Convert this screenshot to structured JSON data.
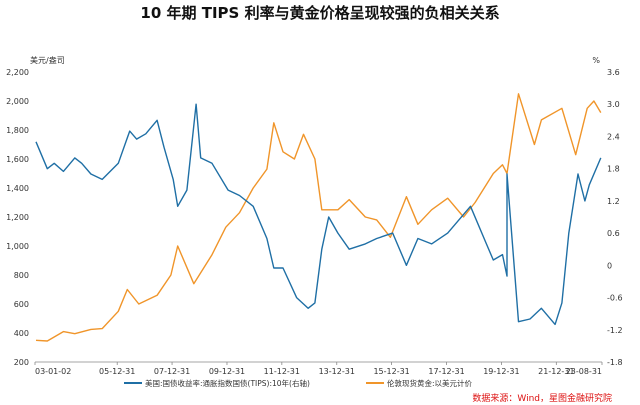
{
  "chart_data": {
    "type": "line",
    "title": "10 年期 TIPS 利率与黄金价格呈现较强的负相关关系",
    "left_unit": "美元/盎司",
    "right_unit": "%",
    "x_ticks": [
      "03-01-02",
      "05-12-31",
      "07-12-31",
      "09-12-31",
      "11-12-31",
      "13-12-31",
      "15-12-31",
      "17-12-31",
      "19-12-31",
      "21-12-31",
      "23-08-31"
    ],
    "x_range": [
      "2003-01-02",
      "2023-08-31"
    ],
    "y_left": {
      "range": [
        200,
        2200
      ],
      "ticks": [
        "200",
        "400",
        "600",
        "800",
        "1,000",
        "1,200",
        "1,400",
        "1,600",
        "1,800",
        "2,000",
        "2,200"
      ]
    },
    "y_right": {
      "range": [
        -1.8,
        3.6
      ],
      "ticks": [
        "-1.8",
        "-1.2",
        "-0.6",
        "0",
        "0.6",
        "1.2",
        "1.8",
        "2.4",
        "3.0",
        "3.6"
      ]
    },
    "grid": false,
    "legend_position": "bottom",
    "source": "数据来源：Wind，星图金融研究院",
    "series": [
      {
        "name": "美国:国债收益率:通胀指数国债(TIPS):10年(右轴)",
        "axis": "right",
        "color": "#1f6fa5",
        "x": [
          "2003-01",
          "2003-06",
          "2003-09",
          "2004-01",
          "2004-06",
          "2004-09",
          "2005-01",
          "2005-06",
          "2006-01",
          "2006-06",
          "2006-09",
          "2007-01",
          "2007-06",
          "2007-09",
          "2008-01",
          "2008-03",
          "2008-07",
          "2008-11",
          "2009-01",
          "2009-06",
          "2010-01",
          "2010-06",
          "2010-12",
          "2011-06",
          "2011-09",
          "2012-01",
          "2012-07",
          "2012-12",
          "2013-03",
          "2013-06",
          "2013-09",
          "2014-01",
          "2014-06",
          "2015-01",
          "2015-06",
          "2016-01",
          "2016-07",
          "2016-12",
          "2017-06",
          "2018-01",
          "2018-11",
          "2019-06",
          "2019-09",
          "2020-01",
          "2020-03",
          "2020-03",
          "2020-08",
          "2021-01",
          "2021-06",
          "2021-12",
          "2022-03",
          "2022-06",
          "2022-10",
          "2023-01",
          "2023-03",
          "2023-08"
        ],
        "values": [
          2.3,
          1.8,
          1.9,
          1.75,
          2.0,
          1.9,
          1.7,
          1.6,
          1.9,
          2.5,
          2.35,
          2.45,
          2.7,
          2.2,
          1.6,
          1.1,
          1.4,
          3.0,
          2.0,
          1.9,
          1.4,
          1.3,
          1.1,
          0.5,
          -0.05,
          -0.05,
          -0.6,
          -0.8,
          -0.7,
          0.3,
          0.9,
          0.6,
          0.3,
          0.4,
          0.5,
          0.6,
          0.0,
          0.5,
          0.4,
          0.6,
          1.1,
          0.4,
          0.1,
          0.2,
          -0.2,
          1.7,
          -1.05,
          -1.0,
          -0.8,
          -1.1,
          -0.7,
          0.6,
          1.7,
          1.2,
          1.5,
          2.0
        ]
      },
      {
        "name": "伦敦现货黄金:以美元计价",
        "axis": "left",
        "color": "#f0952a",
        "x": [
          "2003-01",
          "2003-06",
          "2004-01",
          "2004-06",
          "2005-01",
          "2005-06",
          "2006-01",
          "2006-05",
          "2006-10",
          "2007-06",
          "2007-12",
          "2008-03",
          "2008-10",
          "2009-06",
          "2009-12",
          "2010-06",
          "2010-12",
          "2011-06",
          "2011-09",
          "2012-01",
          "2012-06",
          "2012-10",
          "2013-03",
          "2013-06",
          "2014-01",
          "2014-06",
          "2015-01",
          "2015-06",
          "2015-12",
          "2016-07",
          "2016-12",
          "2017-06",
          "2018-01",
          "2018-08",
          "2019-01",
          "2019-09",
          "2020-01",
          "2020-03",
          "2020-08",
          "2021-03",
          "2021-06",
          "2022-03",
          "2022-09",
          "2023-02",
          "2023-05",
          "2023-08"
        ],
        "values": [
          350,
          345,
          410,
          395,
          425,
          430,
          550,
          700,
          600,
          660,
          800,
          1000,
          740,
          940,
          1130,
          1230,
          1400,
          1530,
          1850,
          1650,
          1600,
          1770,
          1600,
          1250,
          1250,
          1320,
          1200,
          1180,
          1060,
          1340,
          1150,
          1250,
          1330,
          1200,
          1300,
          1500,
          1560,
          1500,
          2050,
          1700,
          1870,
          1950,
          1630,
          1950,
          2000,
          1920
        ]
      }
    ]
  }
}
